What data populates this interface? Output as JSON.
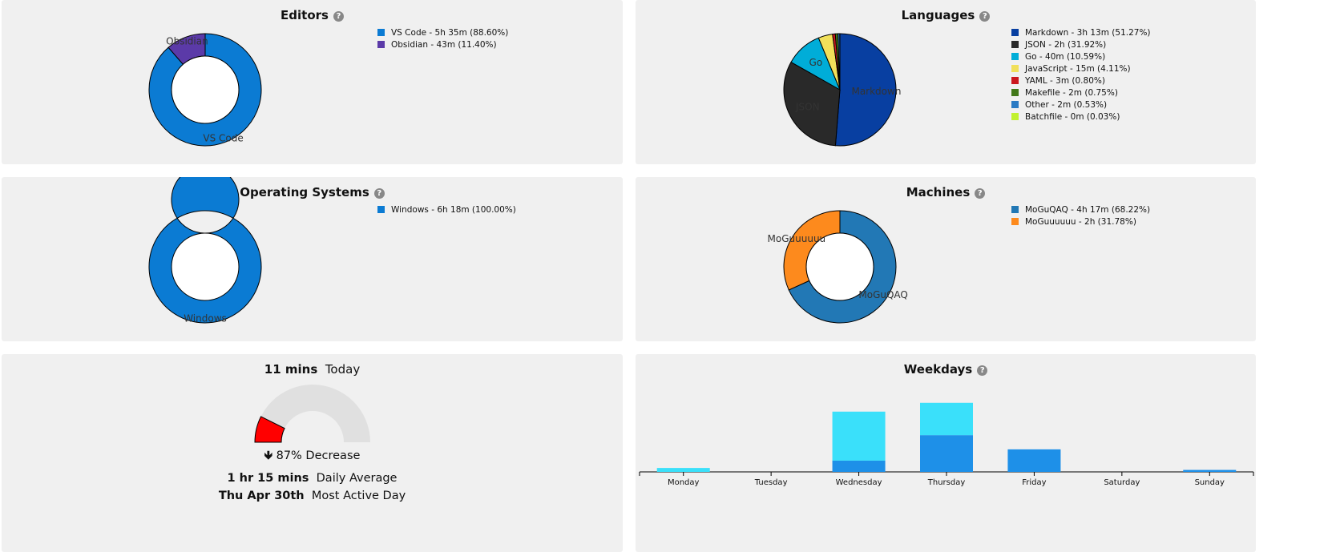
{
  "editors": {
    "title": "Editors",
    "items": [
      {
        "label": "VS Code - 5h 35m (88.60%)",
        "name": "VS Code",
        "value": 88.6,
        "color": "#0b7bd3"
      },
      {
        "label": "Obsidian - 43m (11.40%)",
        "name": "Obsidian",
        "value": 11.4,
        "color": "#5b3aa8"
      }
    ]
  },
  "languages": {
    "title": "Languages",
    "items": [
      {
        "label": "Markdown - 3h 13m (51.27%)",
        "name": "Markdown",
        "value": 51.27,
        "color": "#083fa1"
      },
      {
        "label": "JSON - 2h (31.92%)",
        "name": "JSON",
        "value": 31.92,
        "color": "#292929"
      },
      {
        "label": "Go - 40m (10.59%)",
        "name": "Go",
        "value": 10.59,
        "color": "#00add8"
      },
      {
        "label": "JavaScript - 15m (4.11%)",
        "name": "JavaScript",
        "value": 4.11,
        "color": "#f1e05a"
      },
      {
        "label": "YAML - 3m (0.80%)",
        "name": "YAML",
        "value": 0.8,
        "color": "#cb171e"
      },
      {
        "label": "Makefile - 2m (0.75%)",
        "name": "Makefile",
        "value": 0.75,
        "color": "#427819"
      },
      {
        "label": "Other - 2m (0.53%)",
        "name": "Other",
        "value": 0.53,
        "color": "#2b7bc4"
      },
      {
        "label": "Batchfile - 0m (0.03%)",
        "name": "Batchfile",
        "value": 0.03,
        "color": "#c1f12e"
      }
    ]
  },
  "os": {
    "title": "Operating Systems",
    "items": [
      {
        "label": "Windows - 6h 18m (100.00%)",
        "name": "Windows",
        "value": 100.0,
        "color": "#0b7bd3"
      }
    ]
  },
  "machines": {
    "title": "Machines",
    "items": [
      {
        "label": "MoGuQAQ - 4h 17m (68.22%)",
        "name": "MoGuQAQ",
        "value": 68.22,
        "color": "#2278b5"
      },
      {
        "label": "MoGuuuuuu - 2h (31.78%)",
        "name": "MoGuuuuuu",
        "value": 31.78,
        "color": "#fd8a1d"
      }
    ]
  },
  "today": {
    "today_value": "11 mins",
    "today_label": "Today",
    "change_arrow": "🡻",
    "change_text": "87% Decrease",
    "gauge_fraction": 0.147,
    "avg_value": "1 hr 15 mins",
    "avg_label": "Daily Average",
    "active_value": "Thu Apr 30th",
    "active_label": "Most Active Day",
    "gauge_color": "#ff0000",
    "gauge_bg": "#e0e0e0"
  },
  "weekdays": {
    "title": "Weekdays"
  },
  "chart_data": [
    {
      "type": "pie",
      "title": "Editors",
      "categories": [
        "VS Code",
        "Obsidian"
      ],
      "values": [
        88.6,
        11.4
      ],
      "donut": true
    },
    {
      "type": "pie",
      "title": "Languages",
      "categories": [
        "Markdown",
        "JSON",
        "Go",
        "JavaScript",
        "YAML",
        "Makefile",
        "Other",
        "Batchfile"
      ],
      "values": [
        51.27,
        31.92,
        10.59,
        4.11,
        0.8,
        0.75,
        0.53,
        0.03
      ],
      "donut": false
    },
    {
      "type": "pie",
      "title": "Operating Systems",
      "categories": [
        "Windows"
      ],
      "values": [
        100.0
      ],
      "donut": true
    },
    {
      "type": "pie",
      "title": "Machines",
      "categories": [
        "MoGuQAQ",
        "MoGuuuuuu"
      ],
      "values": [
        68.22,
        31.78
      ],
      "donut": true
    },
    {
      "type": "bar",
      "title": "Weekdays",
      "stacked": true,
      "categories": [
        "Monday",
        "Tuesday",
        "Wednesday",
        "Thursday",
        "Friday",
        "Saturday",
        "Sunday"
      ],
      "series": [
        {
          "color": "#1e90e8",
          "values": [
            0,
            0,
            0.23,
            0.75,
            0.46,
            0,
            0.04
          ]
        },
        {
          "color": "#3ae0fa",
          "values": [
            0.08,
            0,
            1.0,
            0.66,
            0,
            0,
            0
          ]
        }
      ],
      "grid": false
    }
  ]
}
